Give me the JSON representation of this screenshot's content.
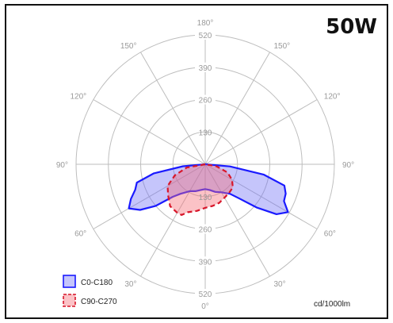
{
  "power_label": "50W",
  "units_label": "cd/1000lm",
  "colors": {
    "grid": "#bdbdbd",
    "c0_stroke": "#1a1aff",
    "c0_fill": "rgba(110,110,245,0.40)",
    "c90_stroke": "#d8162a",
    "c90_fill": "rgba(245,110,120,0.42)"
  },
  "chart_data": {
    "type": "polar",
    "radial_ticks": [
      "130",
      "260",
      "390",
      "520"
    ],
    "radial_max": 520,
    "angle_labels": [
      "180°",
      "150°",
      "120°",
      "90°",
      "60°",
      "30°",
      "0°",
      "30°",
      "60°",
      "90°",
      "120°",
      "150°"
    ],
    "grid": true,
    "legend_position": "bottom-left",
    "series": [
      {
        "name": "C0-C180",
        "style": "solid",
        "points": [
          [
            0,
            100
          ],
          [
            -10,
            105
          ],
          [
            -20,
            115
          ],
          [
            -30,
            125
          ],
          [
            -40,
            155
          ],
          [
            -45,
            185
          ],
          [
            -50,
            260
          ],
          [
            -55,
            320
          ],
          [
            -60,
            355
          ],
          [
            -65,
            330
          ],
          [
            -70,
            300
          ],
          [
            -75,
            285
          ],
          [
            -80,
            210
          ],
          [
            -85,
            90
          ],
          [
            -90,
            0
          ],
          [
            10,
            105
          ],
          [
            20,
            118
          ],
          [
            30,
            130
          ],
          [
            40,
            155
          ],
          [
            45,
            195
          ],
          [
            50,
            270
          ],
          [
            55,
            350
          ],
          [
            60,
            385
          ],
          [
            65,
            350
          ],
          [
            70,
            345
          ],
          [
            75,
            330
          ],
          [
            80,
            240
          ],
          [
            85,
            100
          ],
          [
            90,
            0
          ]
        ]
      },
      {
        "name": "C90-C270",
        "style": "dashed",
        "points": [
          [
            0,
            175
          ],
          [
            -10,
            190
          ],
          [
            -20,
            205
          ],
          [
            -25,
            225
          ],
          [
            -30,
            225
          ],
          [
            -40,
            220
          ],
          [
            -50,
            195
          ],
          [
            -60,
            175
          ],
          [
            -70,
            130
          ],
          [
            -80,
            75
          ],
          [
            -90,
            0
          ],
          [
            10,
            170
          ],
          [
            20,
            165
          ],
          [
            30,
            155
          ],
          [
            40,
            150
          ],
          [
            50,
            145
          ],
          [
            60,
            125
          ],
          [
            70,
            95
          ],
          [
            80,
            45
          ],
          [
            90,
            0
          ]
        ]
      }
    ]
  }
}
